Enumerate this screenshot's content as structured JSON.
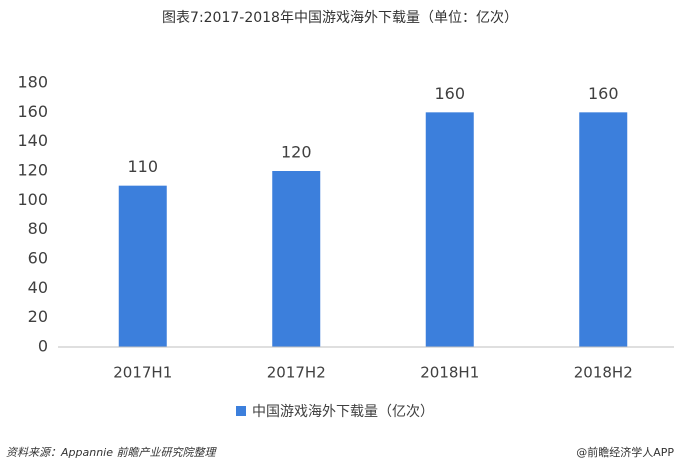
{
  "chart_data": {
    "type": "bar",
    "title": "图表7:2017-2018年中国游戏海外下载量（单位：亿次）",
    "categories": [
      "2017H1",
      "2017H2",
      "2018H1",
      "2018H2"
    ],
    "series": [
      {
        "name": "中国游戏海外下载量（亿次）",
        "color": "#3c7fdc",
        "values": [
          110,
          120,
          160,
          160
        ]
      }
    ],
    "ylim": [
      0,
      180
    ],
    "yticks": [
      0,
      20,
      40,
      60,
      80,
      100,
      120,
      140,
      160,
      180
    ],
    "grid": false,
    "data_labels": true,
    "legend": "bottom",
    "source": "资料来源：Appannie 前瞻产业研究院整理",
    "credit": "@前瞻经济学人APP"
  }
}
